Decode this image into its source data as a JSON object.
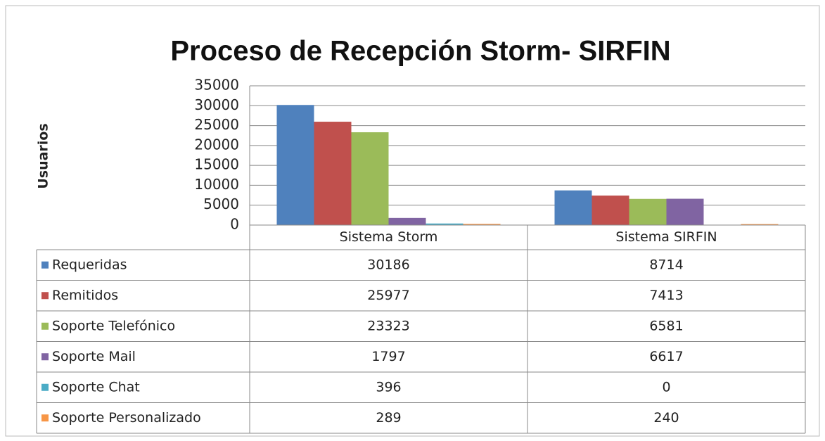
{
  "chart_data": {
    "type": "bar",
    "title": "Proceso de Recepción Storm- SIRFIN",
    "y_label": "Usuarios",
    "categories": [
      "Sistema Storm",
      "Sistema SIRFIN"
    ],
    "series": [
      {
        "name": "Requeridas",
        "color": "#4f81bd",
        "values": [
          30186,
          8714
        ]
      },
      {
        "name": "Remitidos",
        "color": "#c0504d",
        "values": [
          25977,
          7413
        ]
      },
      {
        "name": "Soporte Telefónico",
        "color": "#9bbb59",
        "values": [
          23323,
          6581
        ]
      },
      {
        "name": "Soporte Mail",
        "color": "#8064a2",
        "values": [
          1797,
          6617
        ]
      },
      {
        "name": "Soporte Chat",
        "color": "#4bacc6",
        "values": [
          396,
          0
        ]
      },
      {
        "name": "Soporte Personalizado",
        "color": "#f79646",
        "values": [
          289,
          240
        ]
      }
    ],
    "ylim": [
      0,
      35000
    ],
    "yticks": [
      0,
      5000,
      10000,
      15000,
      20000,
      25000,
      30000,
      35000
    ],
    "grid": true,
    "data_table": true
  }
}
